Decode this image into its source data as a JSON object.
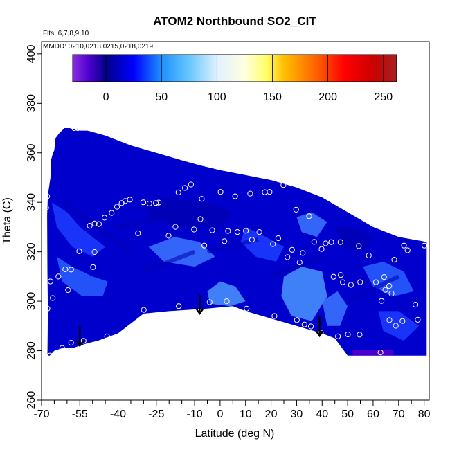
{
  "chart_data": {
    "type": "heatmap",
    "title": "ATOM2 Northbound SO2_CIT",
    "flights_label": "Flts: 6,7,8,9,10",
    "dates_label": "MMDD: 0210,0213,0215,0218,0219",
    "xlabel": "Latitude (deg N)",
    "ylabel": "Theta (C)",
    "xlim": [
      -70,
      82
    ],
    "ylim": [
      260,
      405
    ],
    "x_ticks": [
      -70,
      -55,
      -40,
      -25,
      -10,
      0,
      10,
      20,
      30,
      40,
      50,
      60,
      70,
      80
    ],
    "x_minor_ticks": [
      -65,
      -60,
      -50,
      -45,
      -35,
      -30,
      -20,
      -15,
      -5,
      5,
      15,
      25,
      35,
      45,
      55,
      65,
      75
    ],
    "y_ticks": [
      260,
      280,
      300,
      320,
      340,
      360,
      380,
      400
    ],
    "colorbar": {
      "range": [
        -30,
        262
      ],
      "ticks": [
        0,
        50,
        100,
        150,
        200,
        250
      ],
      "stops": [
        {
          "value": -30,
          "color": "#8a2be2"
        },
        {
          "value": -15,
          "color": "#4b00cc"
        },
        {
          "value": 0,
          "color": "#00008b"
        },
        {
          "value": 25,
          "color": "#0000ff"
        },
        {
          "value": 50,
          "color": "#1e90ff"
        },
        {
          "value": 75,
          "color": "#66c7ff"
        },
        {
          "value": 100,
          "color": "#e0f0ff"
        },
        {
          "value": 125,
          "color": "#ffffe0"
        },
        {
          "value": 145,
          "color": "#ffff66"
        },
        {
          "value": 160,
          "color": "#ffc000"
        },
        {
          "value": 190,
          "color": "#ff6000"
        },
        {
          "value": 215,
          "color": "#ff0000"
        },
        {
          "value": 240,
          "color": "#cc0000"
        },
        {
          "value": 262,
          "color": "#a52020"
        }
      ]
    },
    "field_colors": [
      "#0000cd",
      "#0a14e6",
      "#1e3cff",
      "#2860ff",
      "#3c78ff",
      "#4a96ff",
      "#0000b4"
    ],
    "field_outline": [
      [
        -67.7,
        278
      ],
      [
        -67.5,
        296
      ],
      [
        -67.7,
        312
      ],
      [
        -67.8,
        335
      ],
      [
        -67.5,
        343
      ],
      [
        -66.5,
        350
      ],
      [
        -66.3,
        357
      ],
      [
        -65.5,
        360
      ],
      [
        -65,
        361
      ],
      [
        -64.5,
        366
      ],
      [
        -63,
        368
      ],
      [
        -61,
        370
      ],
      [
        -59,
        370
      ],
      [
        -55,
        369
      ],
      [
        -52,
        369
      ],
      [
        -45,
        367
      ],
      [
        -35,
        363
      ],
      [
        -25,
        360
      ],
      [
        -15,
        357
      ],
      [
        -8,
        355
      ],
      [
        0,
        353
      ],
      [
        10,
        351
      ],
      [
        20,
        349
      ],
      [
        30,
        346
      ],
      [
        40,
        342
      ],
      [
        50,
        336
      ],
      [
        60,
        330
      ],
      [
        70,
        326
      ],
      [
        81,
        324
      ],
      [
        81,
        278
      ],
      [
        50,
        278
      ],
      [
        45,
        285
      ],
      [
        40,
        287
      ],
      [
        30,
        290
      ],
      [
        20,
        293
      ],
      [
        10,
        296
      ],
      [
        5,
        298
      ],
      [
        -5,
        297
      ],
      [
        -20,
        296
      ],
      [
        -30,
        295
      ],
      [
        -40,
        287
      ],
      [
        -48,
        284
      ],
      [
        -52,
        283
      ],
      [
        -58,
        281
      ],
      [
        -62,
        281
      ],
      [
        -65,
        280
      ],
      [
        -66.8,
        278
      ]
    ],
    "field_patches": [
      {
        "color": "#1e3cff",
        "points": [
          [
            -66,
            340
          ],
          [
            -60,
            336
          ],
          [
            -55,
            330
          ],
          [
            -50,
            326
          ],
          [
            -45,
            322
          ],
          [
            -50,
            318
          ],
          [
            -58,
            322
          ],
          [
            -64,
            330
          ]
        ]
      },
      {
        "color": "#2860ff",
        "points": [
          [
            -64,
            318
          ],
          [
            -58,
            314
          ],
          [
            -50,
            310
          ],
          [
            -44,
            308
          ],
          [
            -46,
            302
          ],
          [
            -54,
            302
          ],
          [
            -62,
            308
          ]
        ]
      },
      {
        "color": "#0000b4",
        "points": [
          [
            -30,
            340
          ],
          [
            -20,
            342
          ],
          [
            -5,
            340
          ],
          [
            5,
            336
          ],
          [
            0,
            330
          ],
          [
            -15,
            330
          ],
          [
            -28,
            334
          ]
        ]
      },
      {
        "color": "#3c78ff",
        "points": [
          [
            -28,
            322
          ],
          [
            -18,
            326
          ],
          [
            -8,
            324
          ],
          [
            -2,
            318
          ],
          [
            -10,
            314
          ],
          [
            -22,
            316
          ]
        ]
      },
      {
        "color": "#4a96ff",
        "points": [
          [
            -5,
            304
          ],
          [
            0,
            308
          ],
          [
            6,
            306
          ],
          [
            10,
            300
          ],
          [
            4,
            298
          ],
          [
            -4,
            299
          ]
        ]
      },
      {
        "color": "#1e3cff",
        "points": [
          [
            10,
            330
          ],
          [
            18,
            326
          ],
          [
            25,
            322
          ],
          [
            22,
            316
          ],
          [
            14,
            318
          ],
          [
            8,
            324
          ]
        ]
      },
      {
        "color": "#4a96ff",
        "points": [
          [
            25,
            310
          ],
          [
            32,
            314
          ],
          [
            40,
            312
          ],
          [
            42,
            302
          ],
          [
            36,
            292
          ],
          [
            28,
            294
          ],
          [
            24,
            302
          ]
        ]
      },
      {
        "color": "#3c78ff",
        "points": [
          [
            40,
            300
          ],
          [
            46,
            304
          ],
          [
            50,
            298
          ],
          [
            47,
            290
          ],
          [
            42,
            290
          ]
        ]
      },
      {
        "color": "#0000b4",
        "points": [
          [
            45,
            330
          ],
          [
            52,
            330
          ],
          [
            60,
            326
          ],
          [
            56,
            320
          ],
          [
            48,
            322
          ]
        ]
      },
      {
        "color": "#2860ff",
        "points": [
          [
            56,
            314
          ],
          [
            64,
            316
          ],
          [
            72,
            312
          ],
          [
            76,
            304
          ],
          [
            68,
            302
          ],
          [
            60,
            306
          ]
        ]
      },
      {
        "color": "#1e3cff",
        "points": [
          [
            62,
            296
          ],
          [
            70,
            296
          ],
          [
            78,
            290
          ],
          [
            72,
            284
          ],
          [
            64,
            288
          ]
        ]
      },
      {
        "color": "#3c78ff",
        "points": [
          [
            30,
            334
          ],
          [
            36,
            336
          ],
          [
            42,
            332
          ],
          [
            38,
            326
          ],
          [
            32,
            328
          ]
        ]
      }
    ],
    "field_streaks": [
      [
        [
          -62,
          340
        ],
        [
          -48,
          330
        ]
      ],
      [
        -48,
        330,
        -35,
        320
      ],
      [
        [
          -40,
          330
        ],
        [
          -10,
          335
        ]
      ],
      [
        [
          -5,
          320
        ],
        [
          15,
          325
        ]
      ],
      [
        [
          20,
          310
        ],
        [
          40,
          318
        ]
      ],
      [
        [
          50,
          300
        ],
        [
          70,
          310
        ]
      ],
      [
        [
          -30,
          312
        ],
        [
          -10,
          320
        ]
      ]
    ],
    "purple_strip": {
      "x": [
        52,
        68
      ],
      "y": [
        278,
        280.3
      ],
      "color": "#4b00cc"
    },
    "samples": [
      [
        -57.2,
        370
      ],
      [
        -55.8,
        370
      ],
      [
        -67.1,
        359.4
      ],
      [
        -67.8,
        342.4
      ],
      [
        -68.2,
        337.8
      ],
      [
        -66.5,
        308
      ],
      [
        -63.4,
        310
      ],
      [
        -60.7,
        312.9
      ],
      [
        -55.2,
        320.2
      ],
      [
        -49.8,
        313.8
      ],
      [
        -49.2,
        319.9
      ],
      [
        -51.1,
        330.5
      ],
      [
        -49.2,
        331.4
      ],
      [
        -47.5,
        331.2
      ],
      [
        -45.3,
        333.8
      ],
      [
        -42.5,
        335.7
      ],
      [
        -40.4,
        338.2
      ],
      [
        -38.6,
        339.7
      ],
      [
        -37.2,
        340.5
      ],
      [
        -35.4,
        341.1
      ],
      [
        -32.2,
        327.5
      ],
      [
        -30.1,
        340
      ],
      [
        -27.7,
        339.5
      ],
      [
        -25.2,
        339.7
      ],
      [
        -24.1,
        339.9
      ],
      [
        -20.2,
        326.5
      ],
      [
        -17.5,
        330.1
      ],
      [
        -16.3,
        344
      ],
      [
        -13.8,
        345.8
      ],
      [
        -11.4,
        347.2
      ],
      [
        -10.2,
        329
      ],
      [
        -7.7,
        333.2
      ],
      [
        -7.2,
        341.4
      ],
      [
        -6.2,
        322.5
      ],
      [
        -3.1,
        328.7
      ],
      [
        0.2,
        344.2
      ],
      [
        1.7,
        324.3
      ],
      [
        3.1,
        328.4
      ],
      [
        5.9,
        342.4
      ],
      [
        6.8,
        328
      ],
      [
        10.1,
        328.5
      ],
      [
        11.8,
        343.5
      ],
      [
        12.5,
        324.9
      ],
      [
        15.4,
        328
      ],
      [
        17.5,
        344.1
      ],
      [
        19.4,
        344.2
      ],
      [
        20.7,
        323.1
      ],
      [
        22.8,
        325.5
      ],
      [
        24.8,
        347
      ],
      [
        26.4,
        317.8
      ],
      [
        28.2,
        320.8
      ],
      [
        29.8,
        337
      ],
      [
        31.2,
        315.7
      ],
      [
        32.4,
        319.5
      ],
      [
        34.9,
        334.4
      ],
      [
        36.9,
        324
      ],
      [
        39.8,
        321.1
      ],
      [
        41.4,
        323.4
      ],
      [
        43.6,
        323.9
      ],
      [
        47.2,
        323.9
      ],
      [
        44.5,
        309.9
      ],
      [
        47.3,
        310.6
      ],
      [
        48.1,
        307.7
      ],
      [
        51.3,
        306.6
      ],
      [
        54.4,
        322.3
      ],
      [
        54.9,
        307.7
      ],
      [
        58.3,
        318.5
      ],
      [
        61.1,
        307.7
      ],
      [
        64.3,
        309.8
      ],
      [
        64.8,
        304.6
      ],
      [
        66.3,
        306.2
      ],
      [
        67.2,
        303.1
      ],
      [
        68.3,
        316.8
      ],
      [
        72.1,
        322.5
      ],
      [
        73.5,
        320.6
      ],
      [
        80.1,
        322.5
      ],
      [
        76.6,
        298.6
      ],
      [
        77.5,
        292.5
      ],
      [
        71.5,
        292
      ],
      [
        68.9,
        290.1
      ],
      [
        66.4,
        292.4
      ],
      [
        63.3,
        300.1
      ],
      [
        62.9,
        279.3
      ],
      [
        50.1,
        286.6
      ],
      [
        54.7,
        286.5
      ],
      [
        46.2,
        285.8
      ],
      [
        39.5,
        287.3
      ],
      [
        35.6,
        289.8
      ],
      [
        33.1,
        290.6
      ],
      [
        30.1,
        292.4
      ],
      [
        21.3,
        294
      ],
      [
        10.4,
        297
      ],
      [
        2.6,
        300
      ],
      [
        -4.1,
        299.6
      ],
      [
        -16.2,
        298
      ],
      [
        -29.9,
        296.5
      ],
      [
        -44.3,
        285.8
      ],
      [
        -53.5,
        284
      ],
      [
        -58.4,
        283.2
      ],
      [
        -61.9,
        281.1
      ],
      [
        -65.6,
        301.3
      ],
      [
        -67.7,
        297
      ],
      [
        -59.6,
        304.5
      ],
      [
        -58.4,
        312.8
      ],
      [
        -66.7,
        278
      ]
    ],
    "arrows": [
      {
        "x": -55,
        "y_top": 290,
        "y_bottom": 282
      },
      {
        "x": -8,
        "y_top": 302.5,
        "y_bottom": 295
      },
      {
        "x": 39,
        "y_top": 294,
        "y_bottom": 286
      }
    ]
  }
}
